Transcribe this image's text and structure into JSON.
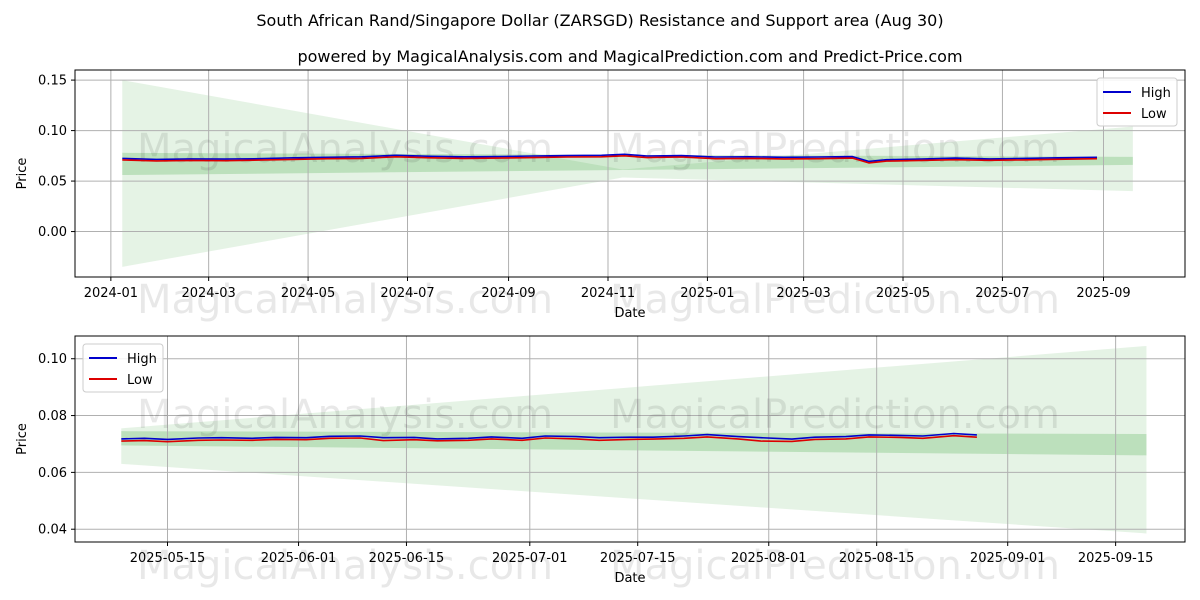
{
  "title": "South African Rand/Singapore Dollar (ZARSGD) Resistance and Support area (Aug 30)",
  "subtitle": "powered by MagicalAnalysis.com and MagicalPrediction.com and Predict-Price.com",
  "watermarks": [
    "MagicalAnalysis.com",
    "MagicalPrediction.com"
  ],
  "colors": {
    "high": "#0000cc",
    "low": "#dd0000",
    "band": "#2ca02c",
    "grid": "#b0b0b0"
  },
  "chart_data": [
    {
      "type": "line",
      "xlabel": "Date",
      "ylabel": "Price",
      "x_ticks": [
        "2024-01",
        "2024-03",
        "2024-05",
        "2024-07",
        "2024-09",
        "2024-11",
        "2025-01",
        "2025-03",
        "2025-05",
        "2025-07",
        "2025-09"
      ],
      "y_ticks": [
        "0.00",
        "0.05",
        "0.10",
        "0.15"
      ],
      "y_tick_values": [
        0.0,
        0.05,
        0.1,
        0.15
      ],
      "xlim": [
        "2023-12-10",
        "2025-10-21"
      ],
      "ylim": [
        -0.045,
        0.16
      ],
      "grid": true,
      "legend": {
        "position": "top-right",
        "entries": [
          "High",
          "Low"
        ]
      },
      "support_band": {
        "x": [
          "2024-01-08",
          "2025-09-19"
        ],
        "lower": [
          0.056,
          0.066
        ],
        "upper": [
          0.078,
          0.074
        ]
      },
      "forecast_fan": {
        "x": [
          "2024-01-08",
          "2025-09-19"
        ],
        "upper_start": 0.15,
        "lower_start": -0.035,
        "upper_end": 0.104,
        "lower_end": 0.04,
        "pivot": "2024-11-10"
      },
      "series": [
        {
          "name": "High",
          "x": [
            "2024-01-08",
            "2024-01-29",
            "2024-02-19",
            "2024-03-11",
            "2024-04-01",
            "2024-04-22",
            "2024-05-13",
            "2024-06-03",
            "2024-06-24",
            "2024-07-15",
            "2024-08-05",
            "2024-08-26",
            "2024-09-16",
            "2024-10-07",
            "2024-10-28",
            "2024-11-11",
            "2024-11-25",
            "2024-12-16",
            "2025-01-06",
            "2025-01-27",
            "2025-02-17",
            "2025-03-10",
            "2025-03-31",
            "2025-04-10",
            "2025-04-21",
            "2025-05-12",
            "2025-06-02",
            "2025-06-23",
            "2025-07-14",
            "2025-08-04",
            "2025-08-28"
          ],
          "values": [
            0.0725,
            0.0715,
            0.072,
            0.0718,
            0.0722,
            0.073,
            0.0735,
            0.074,
            0.0755,
            0.0745,
            0.074,
            0.0742,
            0.0748,
            0.0752,
            0.0755,
            0.0765,
            0.0748,
            0.0752,
            0.0738,
            0.074,
            0.0735,
            0.0738,
            0.0742,
            0.0695,
            0.0712,
            0.0718,
            0.0728,
            0.072,
            0.0725,
            0.073,
            0.0735
          ]
        },
        {
          "name": "Low",
          "x": [
            "2024-01-08",
            "2024-01-29",
            "2024-02-19",
            "2024-03-11",
            "2024-04-01",
            "2024-04-22",
            "2024-05-13",
            "2024-06-03",
            "2024-06-24",
            "2024-07-15",
            "2024-08-05",
            "2024-08-26",
            "2024-09-16",
            "2024-10-07",
            "2024-10-28",
            "2024-11-11",
            "2024-11-25",
            "2024-12-16",
            "2025-01-06",
            "2025-01-27",
            "2025-02-17",
            "2025-03-10",
            "2025-03-31",
            "2025-04-10",
            "2025-04-21",
            "2025-05-12",
            "2025-06-02",
            "2025-06-23",
            "2025-07-14",
            "2025-08-04",
            "2025-08-28"
          ],
          "values": [
            0.071,
            0.07,
            0.0705,
            0.0702,
            0.0708,
            0.0715,
            0.0722,
            0.0725,
            0.074,
            0.073,
            0.0725,
            0.0728,
            0.0732,
            0.0738,
            0.074,
            0.075,
            0.0732,
            0.0738,
            0.0722,
            0.0725,
            0.072,
            0.0722,
            0.0728,
            0.068,
            0.0698,
            0.0705,
            0.0712,
            0.0706,
            0.071,
            0.0716,
            0.0722
          ]
        }
      ]
    },
    {
      "type": "line",
      "xlabel": "Date",
      "ylabel": "Price",
      "x_ticks": [
        "2025-05-15",
        "2025-06-01",
        "2025-06-15",
        "2025-07-01",
        "2025-07-15",
        "2025-08-01",
        "2025-08-15",
        "2025-09-01",
        "2025-09-15"
      ],
      "y_ticks": [
        "0.04",
        "0.06",
        "0.08",
        "0.10"
      ],
      "y_tick_values": [
        0.04,
        0.06,
        0.08,
        0.1
      ],
      "xlim": [
        "2025-05-03",
        "2025-09-24"
      ],
      "ylim": [
        0.0355,
        0.108
      ],
      "grid": true,
      "legend": {
        "position": "top-left",
        "entries": [
          "High",
          "Low"
        ]
      },
      "support_band": {
        "x": [
          "2025-05-09",
          "2025-09-19"
        ],
        "lower": [
          0.0695,
          0.066
        ],
        "upper": [
          0.0745,
          0.0735
        ]
      },
      "forecast_fan": {
        "x": [
          "2025-05-09",
          "2025-09-19"
        ],
        "upper_start": 0.0755,
        "lower_start": 0.063,
        "upper_end": 0.1045,
        "lower_end": 0.0385
      },
      "series": [
        {
          "name": "High",
          "x": [
            "2025-05-09",
            "2025-05-12",
            "2025-05-15",
            "2025-05-19",
            "2025-05-22",
            "2025-05-26",
            "2025-05-29",
            "2025-06-02",
            "2025-06-05",
            "2025-06-09",
            "2025-06-12",
            "2025-06-16",
            "2025-06-19",
            "2025-06-23",
            "2025-06-26",
            "2025-06-30",
            "2025-07-03",
            "2025-07-07",
            "2025-07-10",
            "2025-07-14",
            "2025-07-17",
            "2025-07-21",
            "2025-07-24",
            "2025-07-28",
            "2025-07-31",
            "2025-08-04",
            "2025-08-07",
            "2025-08-11",
            "2025-08-14",
            "2025-08-18",
            "2025-08-21",
            "2025-08-25",
            "2025-08-28"
          ],
          "values": [
            0.0718,
            0.072,
            0.0716,
            0.0721,
            0.0722,
            0.072,
            0.0723,
            0.0722,
            0.0727,
            0.0728,
            0.0722,
            0.0723,
            0.0718,
            0.072,
            0.0725,
            0.072,
            0.0728,
            0.0726,
            0.0722,
            0.0724,
            0.0724,
            0.0728,
            0.0733,
            0.0726,
            0.0722,
            0.0717,
            0.0724,
            0.0726,
            0.0732,
            0.073,
            0.0728,
            0.0737,
            0.0732
          ]
        },
        {
          "name": "Low",
          "x": [
            "2025-05-09",
            "2025-05-12",
            "2025-05-15",
            "2025-05-19",
            "2025-05-22",
            "2025-05-26",
            "2025-05-29",
            "2025-06-02",
            "2025-06-05",
            "2025-06-09",
            "2025-06-12",
            "2025-06-16",
            "2025-06-19",
            "2025-06-23",
            "2025-06-26",
            "2025-06-30",
            "2025-07-03",
            "2025-07-07",
            "2025-07-10",
            "2025-07-14",
            "2025-07-17",
            "2025-07-21",
            "2025-07-24",
            "2025-07-28",
            "2025-07-31",
            "2025-08-04",
            "2025-08-07",
            "2025-08-11",
            "2025-08-14",
            "2025-08-18",
            "2025-08-21",
            "2025-08-25",
            "2025-08-28"
          ],
          "values": [
            0.071,
            0.0712,
            0.0708,
            0.0713,
            0.0714,
            0.0713,
            0.0716,
            0.0715,
            0.072,
            0.0721,
            0.0712,
            0.0715,
            0.0711,
            0.0713,
            0.0718,
            0.0713,
            0.0721,
            0.0718,
            0.0713,
            0.0716,
            0.0717,
            0.072,
            0.0725,
            0.0718,
            0.071,
            0.0709,
            0.0716,
            0.0718,
            0.0725,
            0.0723,
            0.072,
            0.0729,
            0.0724
          ]
        }
      ]
    }
  ]
}
